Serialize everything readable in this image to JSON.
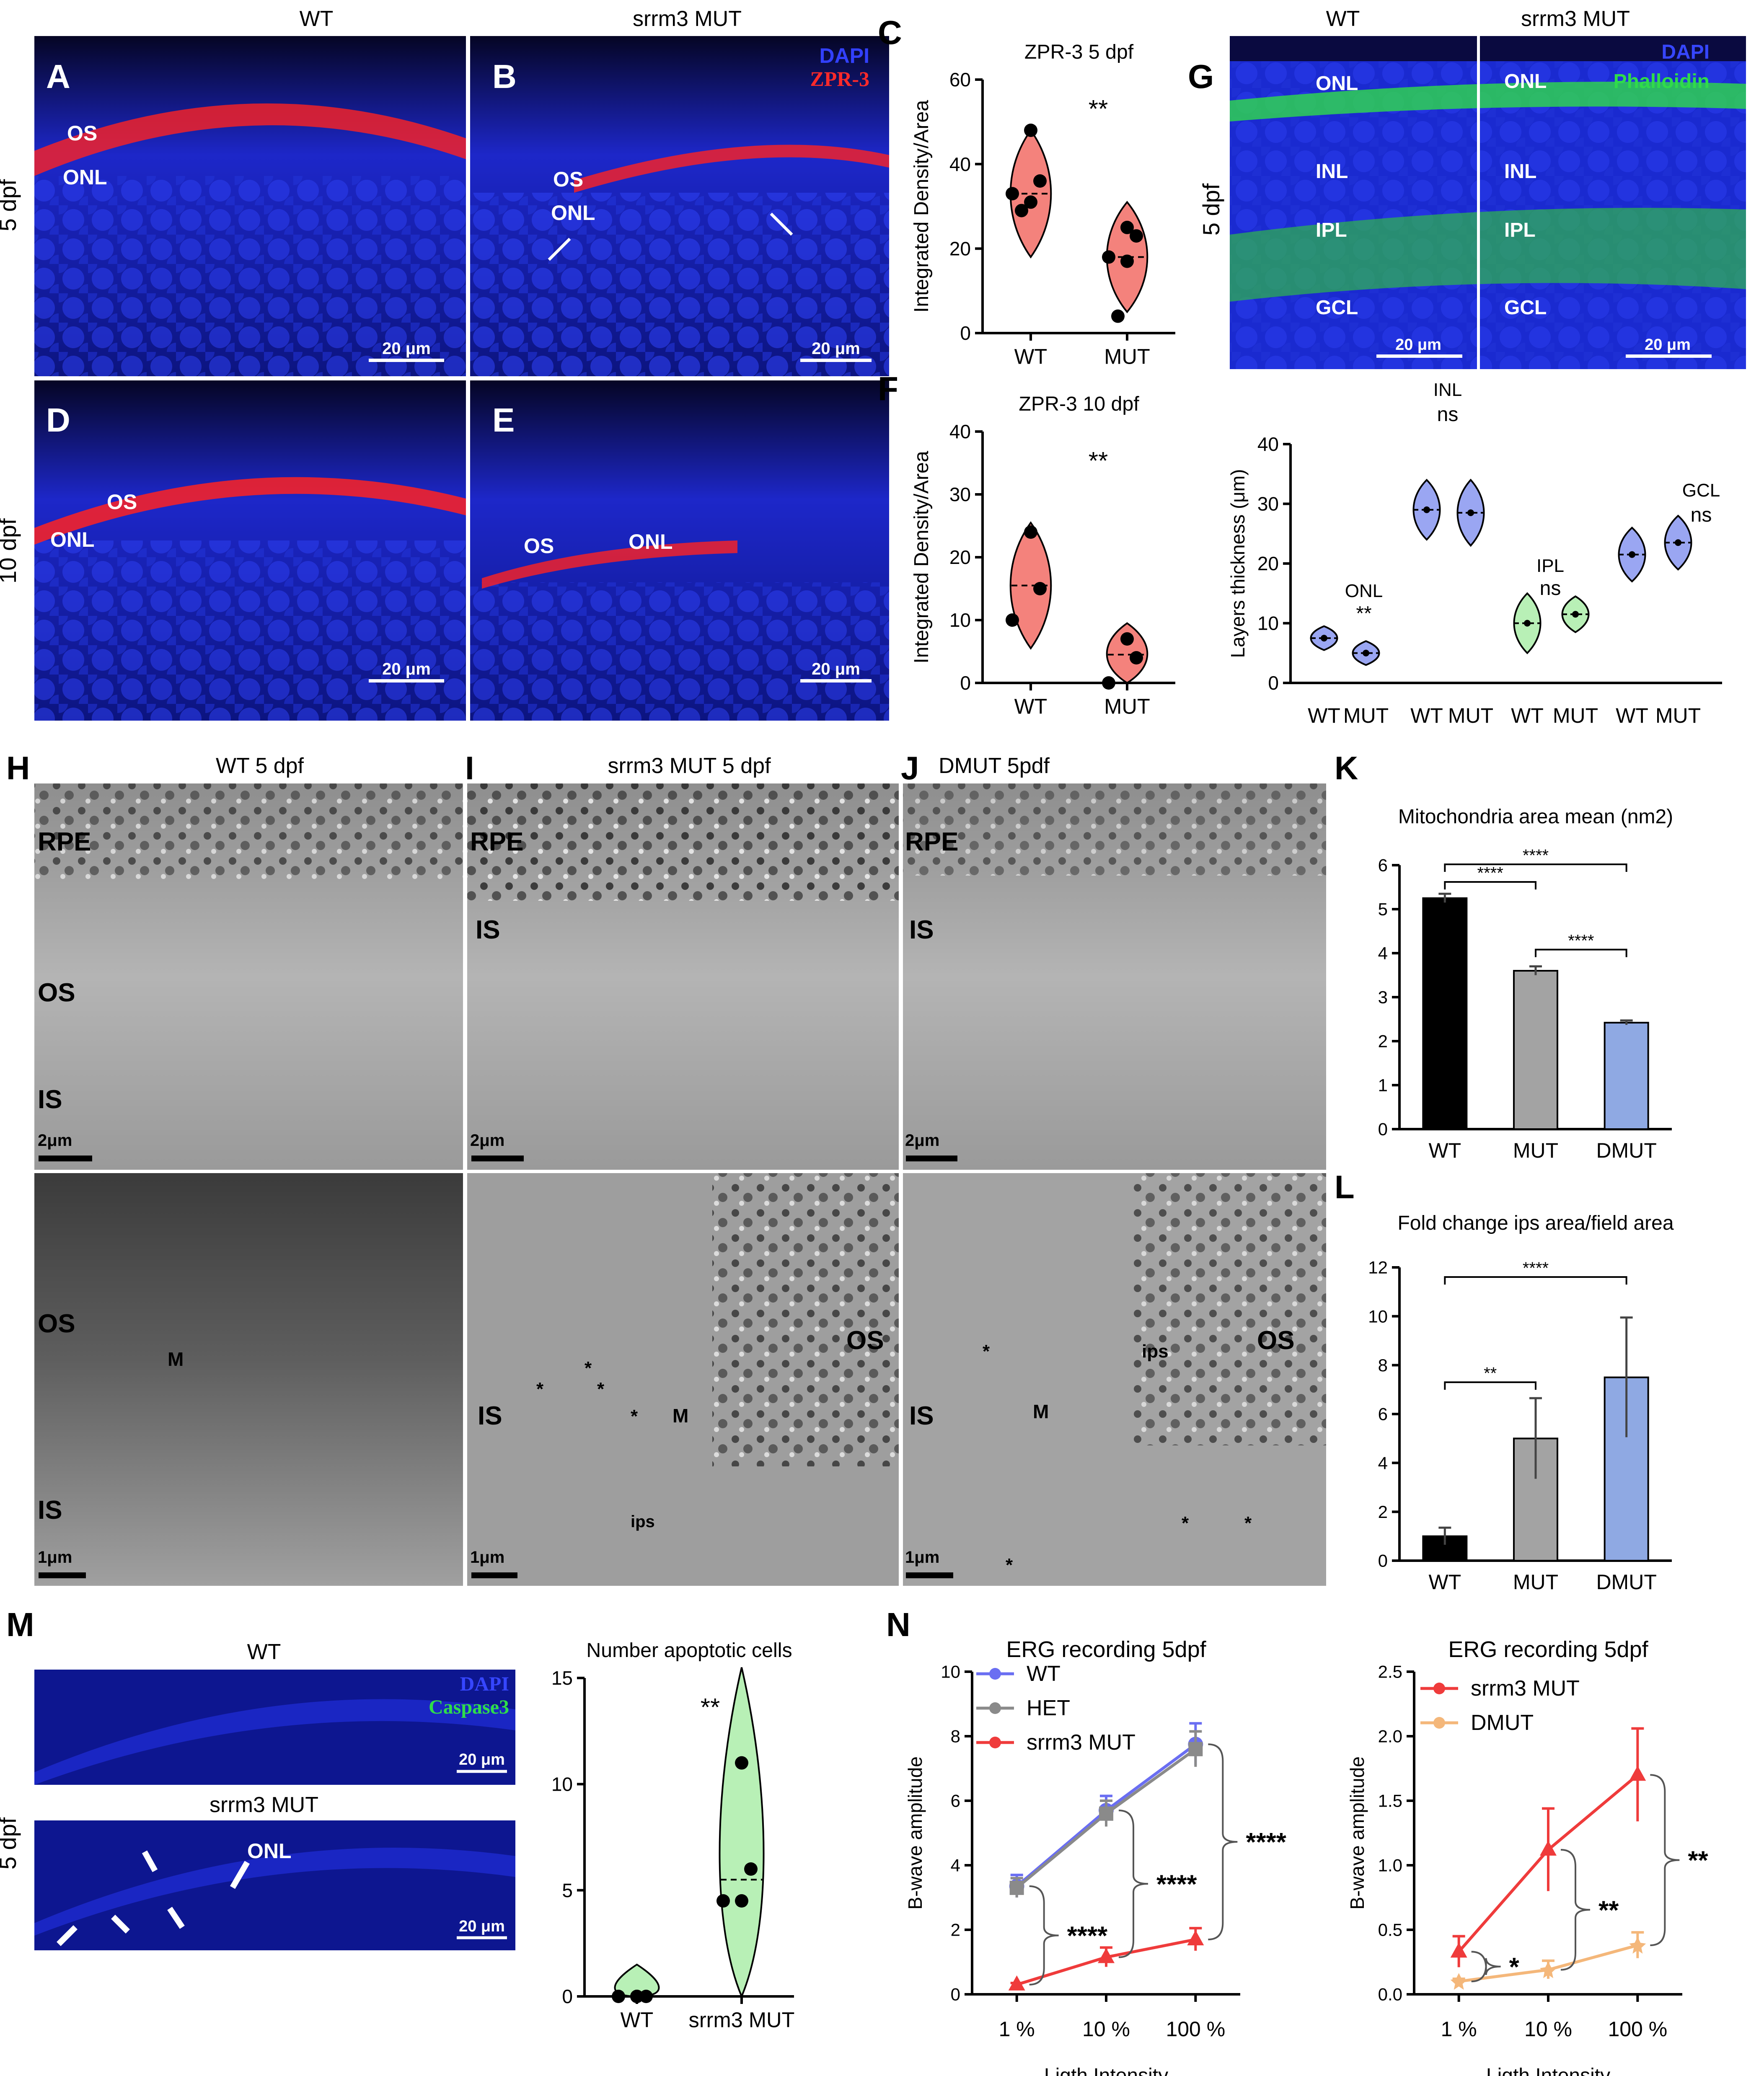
{
  "panels": {
    "A": {
      "letter": "A",
      "header": "WT",
      "row_label": "5 dpf",
      "labels": [
        "OS",
        "ONL"
      ],
      "scale": "20 μm"
    },
    "B": {
      "letter": "B",
      "header": "srrm3 MUT",
      "labels": [
        "OS",
        "ONL"
      ],
      "legend": [
        "DAPI",
        "ZPR-3"
      ],
      "scale": "20 μm"
    },
    "C": {
      "letter": "C"
    },
    "D": {
      "letter": "D",
      "row_label": "10 dpf",
      "labels": [
        "OS",
        "ONL"
      ],
      "scale": "20 μm"
    },
    "E": {
      "letter": "E",
      "labels": [
        "OS",
        "ONL"
      ],
      "scale": "20 μm"
    },
    "F": {
      "letter": "F"
    },
    "G": {
      "letter": "G",
      "header_left": "WT",
      "header_right": "srrm3 MUT",
      "row_label": "5 dpf",
      "layers_left": [
        "ONL",
        "INL",
        "IPL",
        "GCL"
      ],
      "layers_right": [
        "ONL",
        "INL",
        "IPL",
        "GCL"
      ],
      "legend": [
        "DAPI",
        "Phalloidin"
      ],
      "scale_left": "20 μm",
      "scale_right": "20 μm"
    },
    "H": {
      "letter": "H",
      "header": "WT 5 dpf",
      "top_labels": [
        "RPE",
        "OS",
        "IS"
      ],
      "top_scale": "2μm",
      "bottom_labels": [
        "OS",
        "M",
        "IS"
      ],
      "bottom_scale": "1μm"
    },
    "I": {
      "letter": "I",
      "header": "srrm3 MUT 5 dpf",
      "top_labels": [
        "RPE",
        "IS"
      ],
      "top_scale": "2μm",
      "bottom_labels": [
        "OS",
        "IS",
        "M",
        "ips",
        "*"
      ],
      "bottom_scale": "1μm"
    },
    "J": {
      "letter": "J",
      "header": "DMUT 5pdf",
      "top_labels": [
        "RPE",
        "IS"
      ],
      "top_scale": "2μm",
      "bottom_labels": [
        "ips",
        "OS",
        "IS",
        "M",
        "*"
      ],
      "bottom_scale": "1μm"
    },
    "K": {
      "letter": "K"
    },
    "L": {
      "letter": "L"
    },
    "M": {
      "letter": "M",
      "header_top": "WT",
      "header_bottom": "srrm3 MUT",
      "row_label": "5 dpf",
      "legend": [
        "DAPI",
        "Caspase3"
      ],
      "label_onl": "ONL",
      "scale_top": "20 μm",
      "scale_bottom": "20 μm"
    },
    "N": {
      "letter": "N"
    }
  },
  "colors": {
    "dapi": "#1a2bd6",
    "zpr3": "#ff2020",
    "phalloidin": "#27d84a",
    "caspase": "#27d84a",
    "violin_red": "#f4827c",
    "violin_blue": "#9aa6f2",
    "violin_green": "#b8f0b6",
    "bar_wt": "#000000",
    "bar_mut": "#a3a3a3",
    "bar_dmut": "#8fa9e3",
    "erg_wt": "#6a6ef2",
    "erg_het": "#8a8a8a",
    "erg_mut": "#ef3b3b",
    "erg_dmut": "#f4b77a"
  },
  "chart_data": [
    {
      "id": "C",
      "type": "violin",
      "title": "ZPR-3 5 dpf",
      "ylabel": "Integrated Density/Area",
      "ylim": [
        0,
        60
      ],
      "yticks": [
        0,
        20,
        40,
        60
      ],
      "categories": [
        "WT",
        "MUT"
      ],
      "points": [
        [
          48,
          36,
          33,
          31,
          29
        ],
        [
          25,
          23,
          18,
          17,
          4
        ]
      ],
      "medians": [
        33,
        18
      ],
      "significance": "**"
    },
    {
      "id": "F",
      "type": "violin",
      "title": "ZPR-3 10 dpf",
      "ylabel": "Integrated Density/Area",
      "ylim": [
        0,
        40
      ],
      "yticks": [
        0,
        10,
        20,
        30,
        40
      ],
      "categories": [
        "WT",
        "MUT"
      ],
      "points": [
        [
          24,
          15,
          10
        ],
        [
          7,
          4,
          0
        ]
      ],
      "medians": [
        15.5,
        4.5
      ],
      "significance": "**"
    },
    {
      "id": "G2",
      "type": "violin",
      "ylabel": "Layers thickness (μm)",
      "ylim": [
        0,
        40
      ],
      "yticks": [
        0,
        10,
        20,
        30,
        40
      ],
      "categories": [
        "WT",
        "MUT",
        "WT",
        "MUT",
        "WT",
        "MUT",
        "WT",
        "MUT"
      ],
      "groups": [
        {
          "label": "ONL",
          "sig": "**"
        },
        {
          "label": "INL",
          "sig": "ns"
        },
        {
          "label": "IPL",
          "sig": "ns"
        },
        {
          "label": "GCL",
          "sig": "ns"
        }
      ],
      "medians": [
        7.5,
        5,
        29,
        28.5,
        10,
        11.5,
        21.5,
        23.5
      ]
    },
    {
      "id": "K",
      "type": "bar",
      "title": "Mitochondria area mean (nm2)",
      "ylim": [
        0,
        6
      ],
      "yticks": [
        0,
        1,
        2,
        3,
        4,
        5,
        6
      ],
      "categories": [
        "WT",
        "MUT",
        "DMUT"
      ],
      "values": [
        5.25,
        3.6,
        2.42
      ],
      "errors": [
        0.1,
        0.1,
        0.05
      ],
      "comparisons": [
        {
          "a": 0,
          "b": 2,
          "sig": "****"
        },
        {
          "a": 0,
          "b": 1,
          "sig": "****"
        },
        {
          "a": 1,
          "b": 2,
          "sig": "****"
        }
      ]
    },
    {
      "id": "L",
      "type": "bar",
      "title": "Fold change ips area/field area",
      "ylim": [
        0,
        12
      ],
      "yticks": [
        0,
        2,
        4,
        6,
        8,
        10,
        12
      ],
      "categories": [
        "WT",
        "MUT",
        "DMUT"
      ],
      "values": [
        1,
        5,
        7.5
      ],
      "errors": [
        0.35,
        1.65,
        2.45
      ],
      "comparisons": [
        {
          "a": 0,
          "b": 2,
          "sig": "****"
        },
        {
          "a": 0,
          "b": 1,
          "sig": "**"
        }
      ]
    },
    {
      "id": "M2",
      "type": "violin",
      "title": "Number apoptotic cells",
      "ylim": [
        0,
        15
      ],
      "yticks": [
        0,
        5,
        10,
        15
      ],
      "categories": [
        "WT",
        "srrm3 MUT"
      ],
      "points": [
        [
          0,
          0,
          0,
          0
        ],
        [
          11,
          6,
          4.5,
          4.5
        ]
      ],
      "medians": [
        0,
        5.5
      ],
      "significance": "**"
    },
    {
      "id": "N1",
      "type": "line",
      "title": "ERG recording 5dpf",
      "xlabel": "Ligth Intensity",
      "ylabel": "B-wave amplitude",
      "ylim": [
        0,
        10
      ],
      "yticks": [
        0,
        2,
        4,
        6,
        8,
        10
      ],
      "categories": [
        "1 %",
        "10 %",
        "100 %"
      ],
      "series": [
        {
          "name": "WT",
          "values": [
            3.35,
            5.7,
            7.75
          ],
          "errors": [
            0.35,
            0.45,
            0.65
          ]
        },
        {
          "name": "HET",
          "values": [
            3.3,
            5.6,
            7.6
          ],
          "errors": [
            0.3,
            0.4,
            0.55
          ]
        },
        {
          "name": "srrm3 MUT",
          "values": [
            0.3,
            1.15,
            1.7
          ],
          "errors": [
            0.05,
            0.3,
            0.35
          ]
        }
      ],
      "significance": [
        "****",
        "****",
        "****"
      ]
    },
    {
      "id": "N2",
      "type": "line",
      "title": "ERG recording 5dpf",
      "xlabel": "Ligth Intensity",
      "ylabel": "B-wave amplitude",
      "ylim": [
        0,
        2.5
      ],
      "yticks": [
        "0.0",
        "0.5",
        "1.0",
        "1.5",
        "2.0",
        "2.5"
      ],
      "categories": [
        "1 %",
        "10 %",
        "100 %"
      ],
      "series": [
        {
          "name": "srrm3 MUT",
          "values": [
            0.33,
            1.12,
            1.7
          ],
          "errors": [
            0.12,
            0.32,
            0.36
          ]
        },
        {
          "name": "DMUT",
          "values": [
            0.1,
            0.19,
            0.38
          ],
          "errors": [
            0.02,
            0.07,
            0.1
          ]
        }
      ],
      "significance": [
        "*",
        "**",
        "**"
      ]
    }
  ]
}
